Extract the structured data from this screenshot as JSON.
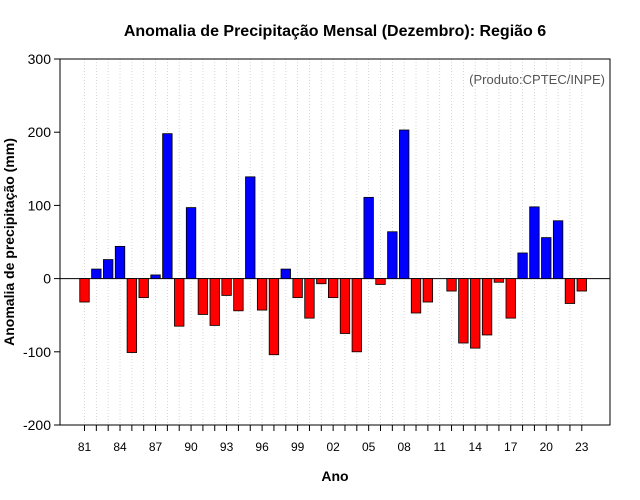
{
  "chart_data": {
    "type": "bar",
    "title": "Anomalia de Precipitação Mensal (Dezembro): Região 6",
    "xlabel": "Ano",
    "ylabel": "Anomalia de precipitação (mm)",
    "annotation": "(Produto:CPTEC/INPE)",
    "ylim": [
      -200,
      300
    ],
    "yticks": [
      -200,
      -100,
      0,
      100,
      200,
      300
    ],
    "ytick_labels": [
      "-200",
      "-100",
      "0",
      "100",
      "200",
      "300"
    ],
    "xtick_labels": [
      "81",
      "84",
      "87",
      "90",
      "93",
      "96",
      "99",
      "02",
      "05",
      "08",
      "11",
      "14",
      "17",
      "20",
      "23"
    ],
    "xtick_every": 3,
    "grid": true,
    "colors": {
      "positive": "#0000ff",
      "negative": "#ff0000"
    },
    "categories": [
      "81",
      "82",
      "83",
      "84",
      "85",
      "86",
      "87",
      "88",
      "89",
      "90",
      "91",
      "92",
      "93",
      "94",
      "95",
      "96",
      "97",
      "98",
      "99",
      "00",
      "01",
      "02",
      "03",
      "04",
      "05",
      "06",
      "07",
      "08",
      "09",
      "10",
      "11",
      "12",
      "13",
      "14",
      "15",
      "16",
      "17",
      "18",
      "19",
      "20",
      "21",
      "22",
      "23"
    ],
    "values": [
      -32,
      13,
      26,
      44,
      -101,
      -26,
      5,
      198,
      -65,
      97,
      -49,
      -64,
      -23,
      -44,
      139,
      -43,
      -104,
      13,
      -26,
      -54,
      -7,
      -26,
      -75,
      -100,
      111,
      -8,
      64,
      203,
      -47,
      -32,
      0,
      -17,
      -88,
      -95,
      -77,
      -5,
      -54,
      35,
      98,
      56,
      79,
      -34,
      -17
    ]
  }
}
